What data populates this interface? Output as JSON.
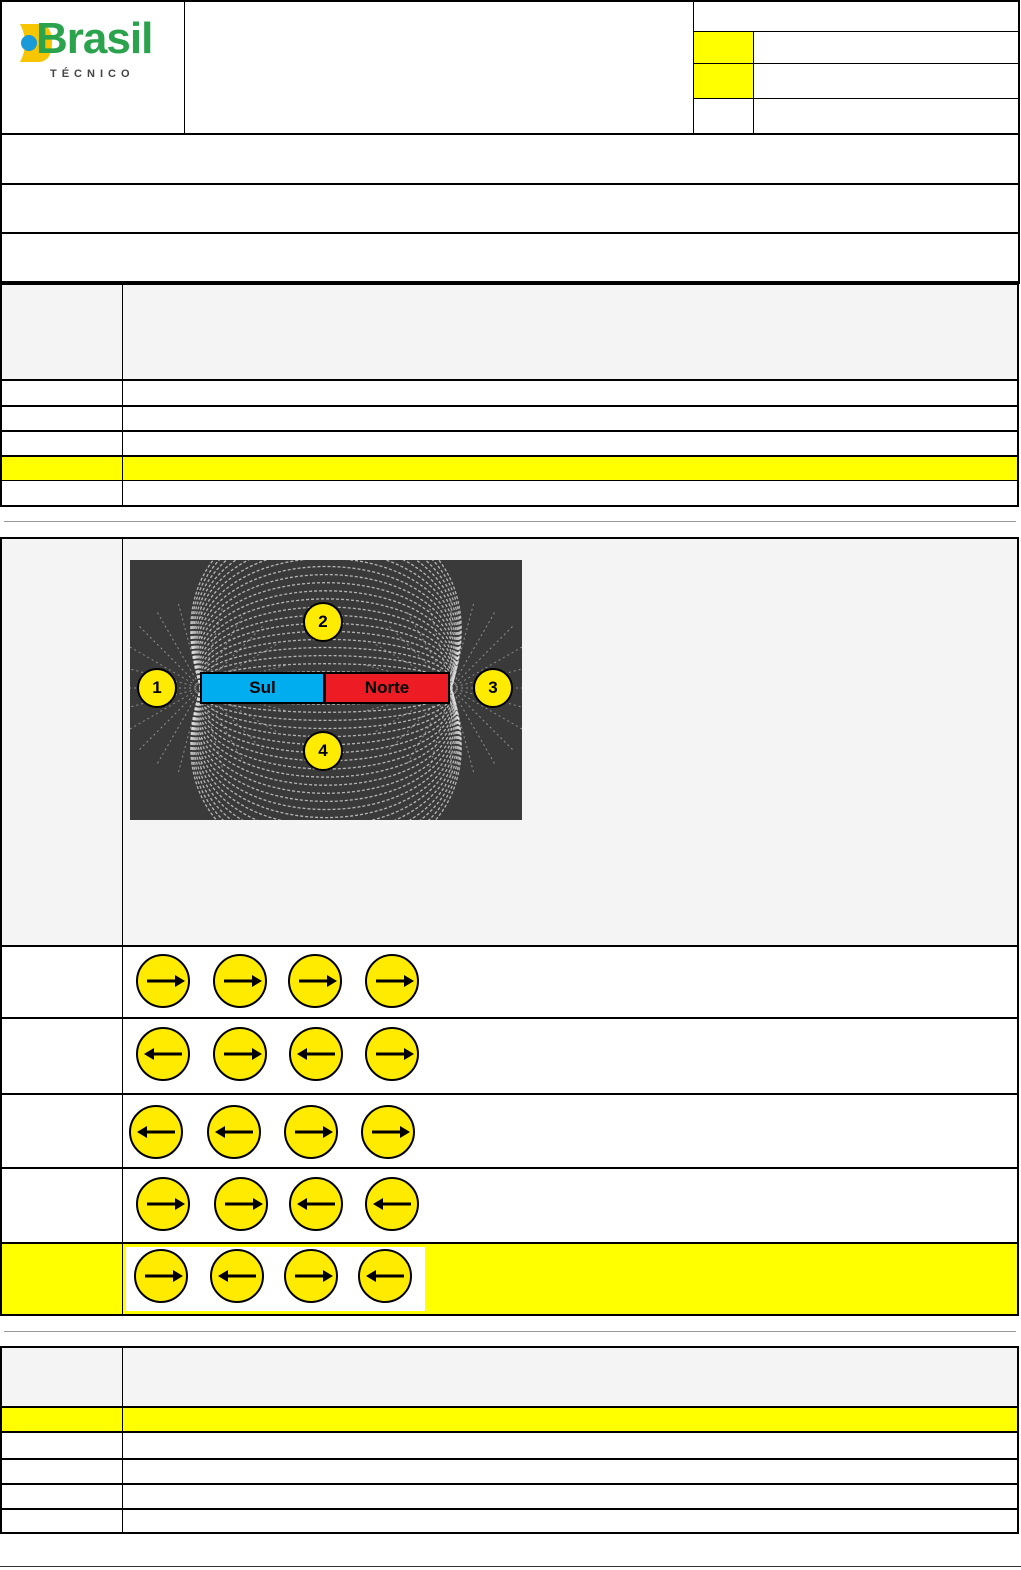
{
  "logo": {
    "brand": "Brasil",
    "subtitle": "TÉCNICO",
    "colors": {
      "green": "#2ba24c",
      "yellow": "#f7c600",
      "blue": "#1a9ad9"
    }
  },
  "magnet": {
    "south_label": "Sul",
    "north_label": "Norte",
    "points": [
      "1",
      "2",
      "3",
      "4"
    ],
    "colors": {
      "south": "#00aeef",
      "north": "#ed1c24",
      "marker": "#ffeb00"
    }
  },
  "options": [
    {
      "arrows": [
        "right",
        "right",
        "right",
        "right"
      ],
      "highlighted": false
    },
    {
      "arrows": [
        "left",
        "right",
        "left",
        "right"
      ],
      "highlighted": false
    },
    {
      "arrows": [
        "left",
        "left",
        "right",
        "right"
      ],
      "highlighted": false
    },
    {
      "arrows": [
        "right",
        "right",
        "left",
        "left"
      ],
      "highlighted": false
    },
    {
      "arrows": [
        "right",
        "left",
        "right",
        "left"
      ],
      "highlighted": true
    }
  ],
  "highlight_color": "#ffff00"
}
